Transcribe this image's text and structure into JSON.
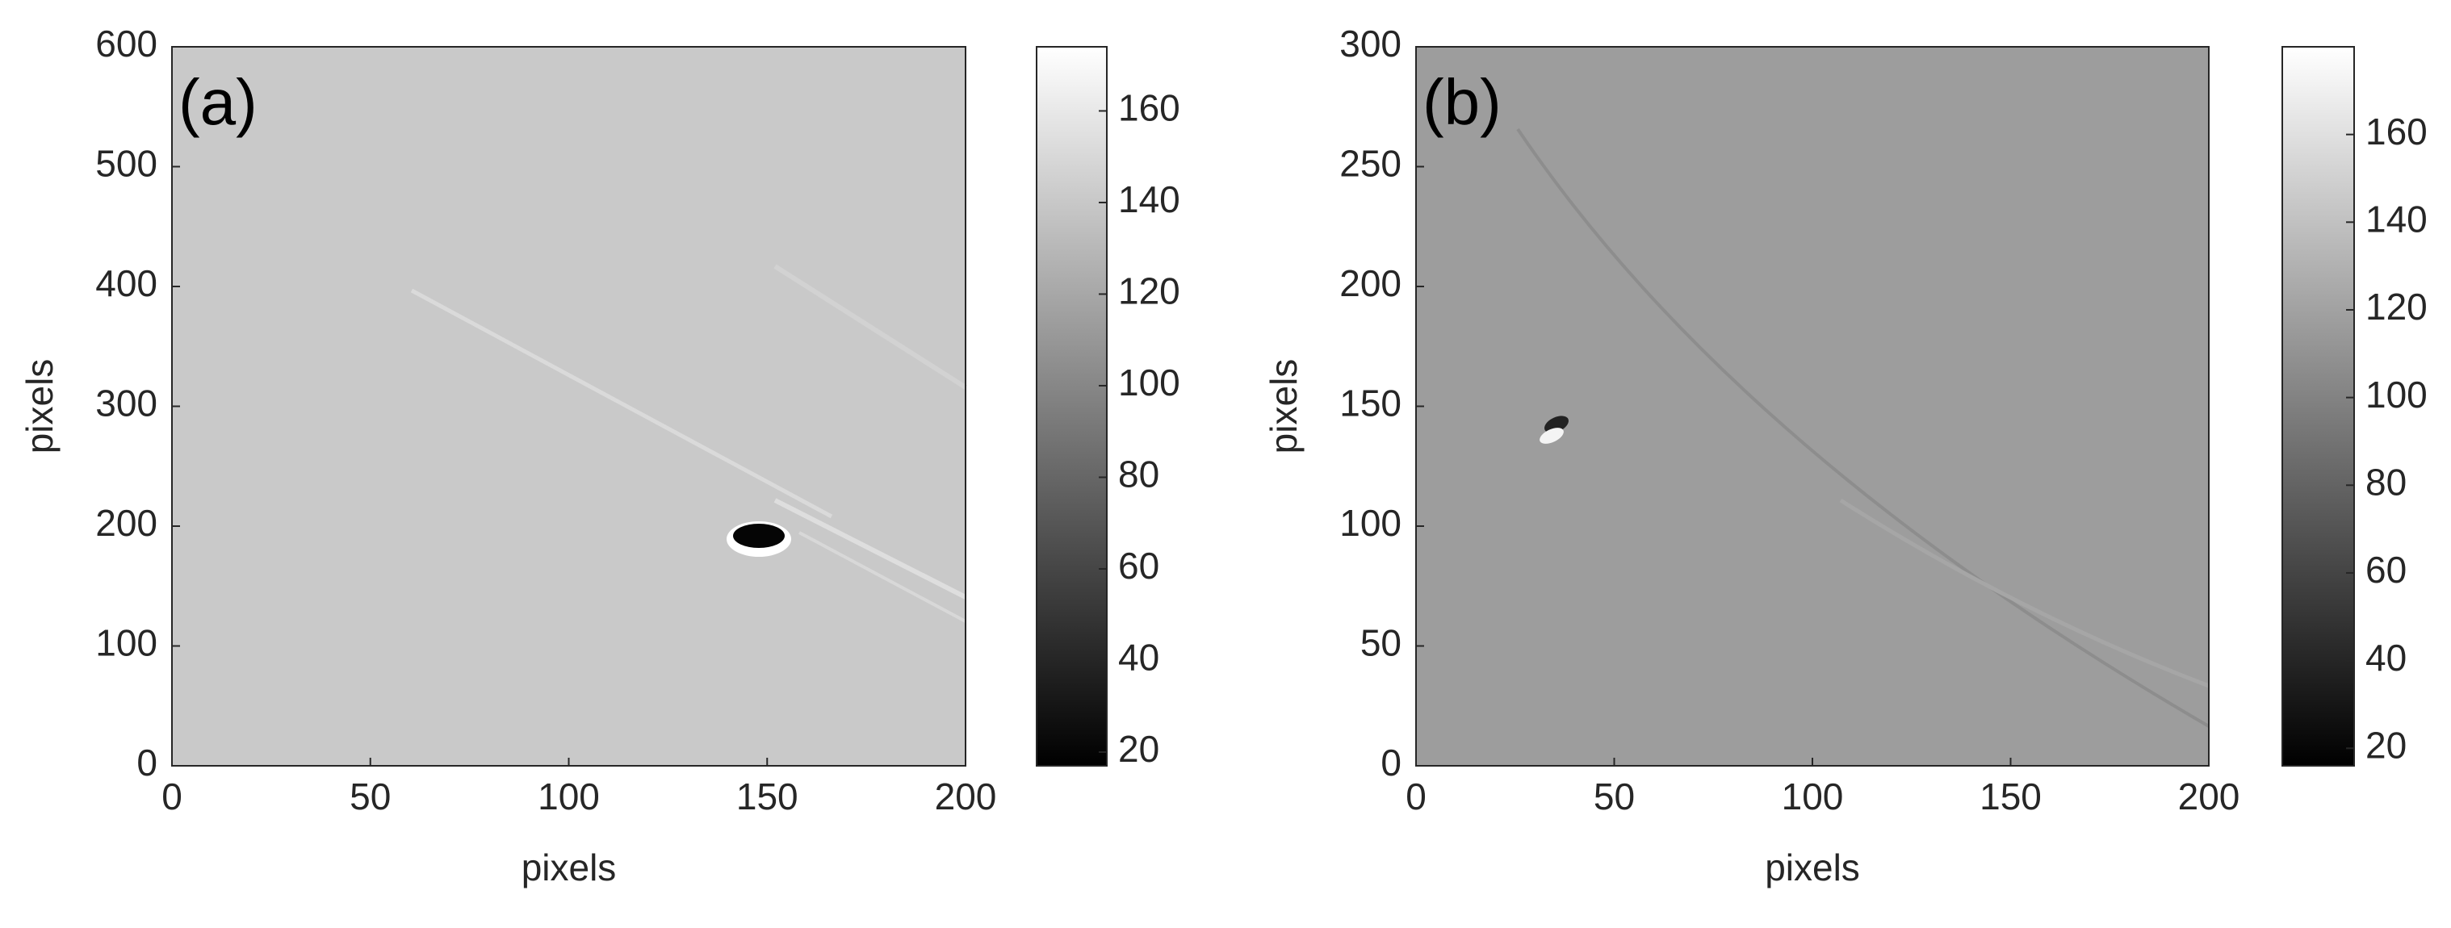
{
  "chart_data": [
    {
      "type": "heatmap",
      "panel_label": "(a)",
      "xlabel": "pixels",
      "ylabel": "pixels",
      "xlim": [
        0,
        200
      ],
      "xticks": [
        0,
        50,
        100,
        150,
        200
      ],
      "ylim": [
        0,
        600
      ],
      "yticks": [
        0,
        100,
        200,
        300,
        400,
        500,
        600
      ],
      "clim": [
        17,
        174
      ],
      "cticks": [
        20,
        40,
        60,
        80,
        100,
        120,
        140,
        160
      ],
      "background": "#c9c9c9"
    },
    {
      "type": "heatmap",
      "panel_label": "(b)",
      "xlabel": "pixels",
      "ylabel": "pixels",
      "xlim": [
        0,
        200
      ],
      "xticks": [
        0,
        50,
        100,
        150,
        200
      ],
      "ylim": [
        0,
        300
      ],
      "yticks": [
        0,
        50,
        100,
        150,
        200,
        250,
        300
      ],
      "clim": [
        16,
        180
      ],
      "cticks": [
        20,
        40,
        60,
        80,
        100,
        120,
        140,
        160
      ],
      "background": "#9d9d9d"
    }
  ]
}
